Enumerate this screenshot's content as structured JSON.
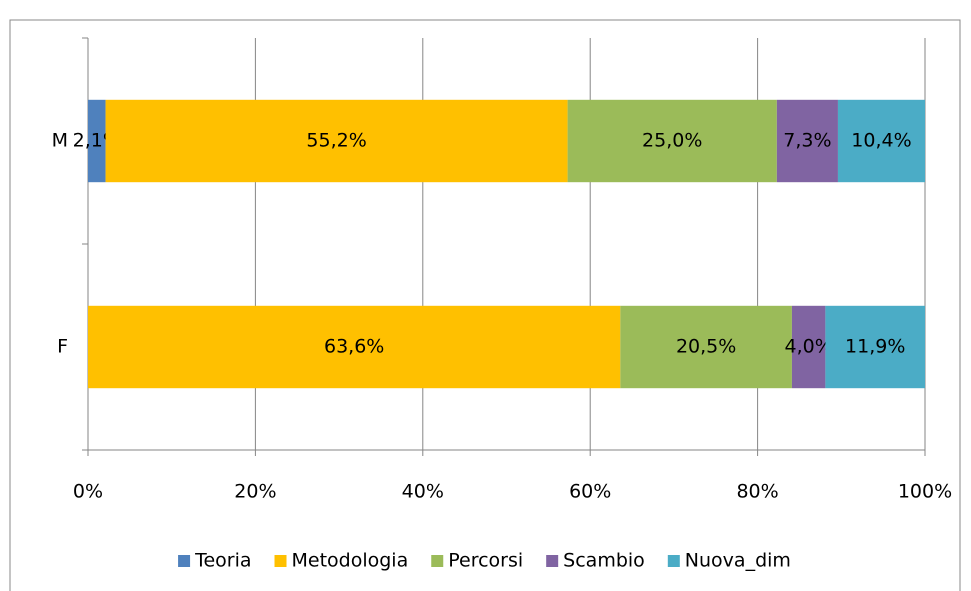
{
  "chart_data": {
    "type": "stacked-bar-horizontal",
    "categories": [
      "M",
      "F"
    ],
    "series": [
      {
        "name": "Teoria",
        "color": "#4f81bd",
        "values": [
          2.1,
          0
        ],
        "value_labels": [
          "2,1%",
          null
        ]
      },
      {
        "name": "Metodologia",
        "color": "#ffc000",
        "values": [
          55.2,
          63.6
        ],
        "value_labels": [
          "55,2%",
          "63,6%"
        ]
      },
      {
        "name": "Percorsi",
        "color": "#9bbb59",
        "values": [
          25.0,
          20.5
        ],
        "value_labels": [
          "25,0%",
          "20,5%"
        ]
      },
      {
        "name": "Scambio",
        "color": "#8064a2",
        "values": [
          7.3,
          4.0
        ],
        "value_labels": [
          "7,3%",
          "4,0%"
        ]
      },
      {
        "name": "Nuova_dim",
        "color": "#4bacc6",
        "values": [
          10.4,
          11.9
        ],
        "value_labels": [
          "10,4%",
          "11,9%"
        ]
      }
    ],
    "xlim": [
      0,
      100
    ],
    "xticks": [
      {
        "value": 0,
        "label": "0%"
      },
      {
        "value": 20,
        "label": "20%"
      },
      {
        "value": 40,
        "label": "40%"
      },
      {
        "value": 60,
        "label": "60%"
      },
      {
        "value": 80,
        "label": "80%"
      },
      {
        "value": 100,
        "label": "100%"
      }
    ],
    "grid": true,
    "legend": "bottom"
  }
}
